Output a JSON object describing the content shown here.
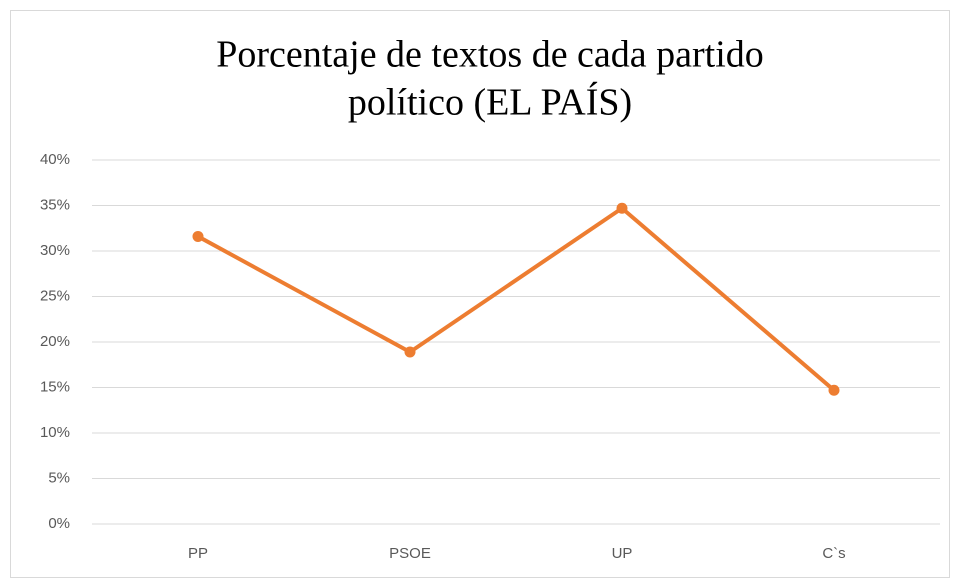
{
  "chart_data": {
    "type": "line",
    "title": [
      "Porcentaje de textos de cada partido",
      "político (EL PAÍS)"
    ],
    "categories": [
      "PP",
      "PSOE",
      "UP",
      "C`s"
    ],
    "series": [
      {
        "name": "Porcentaje",
        "color": "#ed7d31",
        "values": [
          31.6,
          18.9,
          34.7,
          14.7
        ]
      }
    ],
    "ylim": [
      0,
      40
    ],
    "yticks": [
      {
        "value": 0,
        "label": "0%"
      },
      {
        "value": 5,
        "label": "5%"
      },
      {
        "value": 10,
        "label": "10%"
      },
      {
        "value": 15,
        "label": "15%"
      },
      {
        "value": 20,
        "label": "20%"
      },
      {
        "value": 25,
        "label": "25%"
      },
      {
        "value": 30,
        "label": "30%"
      },
      {
        "value": 35,
        "label": "35%"
      },
      {
        "value": 40,
        "label": "40%"
      }
    ],
    "grid": true
  }
}
